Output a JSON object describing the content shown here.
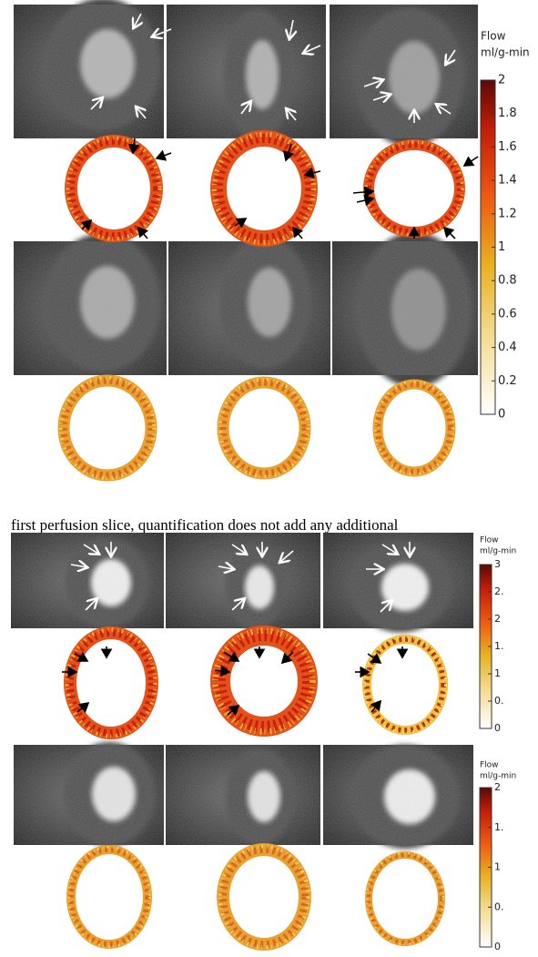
{
  "caption": "first perfusion slice, quantification does not add any additional",
  "colorbars": [
    {
      "title": "Flow",
      "unit": "ml/g-min",
      "range": [
        0,
        2
      ],
      "ticks": [
        0,
        0.2,
        0.4,
        0.6,
        0.8,
        1,
        1.2,
        1.4,
        1.6,
        1.8,
        2
      ]
    },
    {
      "title": "Flow",
      "unit": "ml/g-min",
      "range": [
        0,
        3
      ],
      "ticks": [
        0,
        {
          "value": 0.5,
          "label": "0."
        },
        1,
        {
          "value": 1.5,
          "label": "1."
        },
        2,
        {
          "value": 2.5,
          "label": "2."
        },
        3
      ]
    },
    {
      "title": "Flow",
      "unit": "ml/g-min",
      "range": [
        0,
        2
      ],
      "ticks": [
        0,
        {
          "value": 0.5,
          "label": "0."
        },
        1,
        {
          "value": 1.5,
          "label": "1."
        },
        2
      ]
    }
  ]
}
